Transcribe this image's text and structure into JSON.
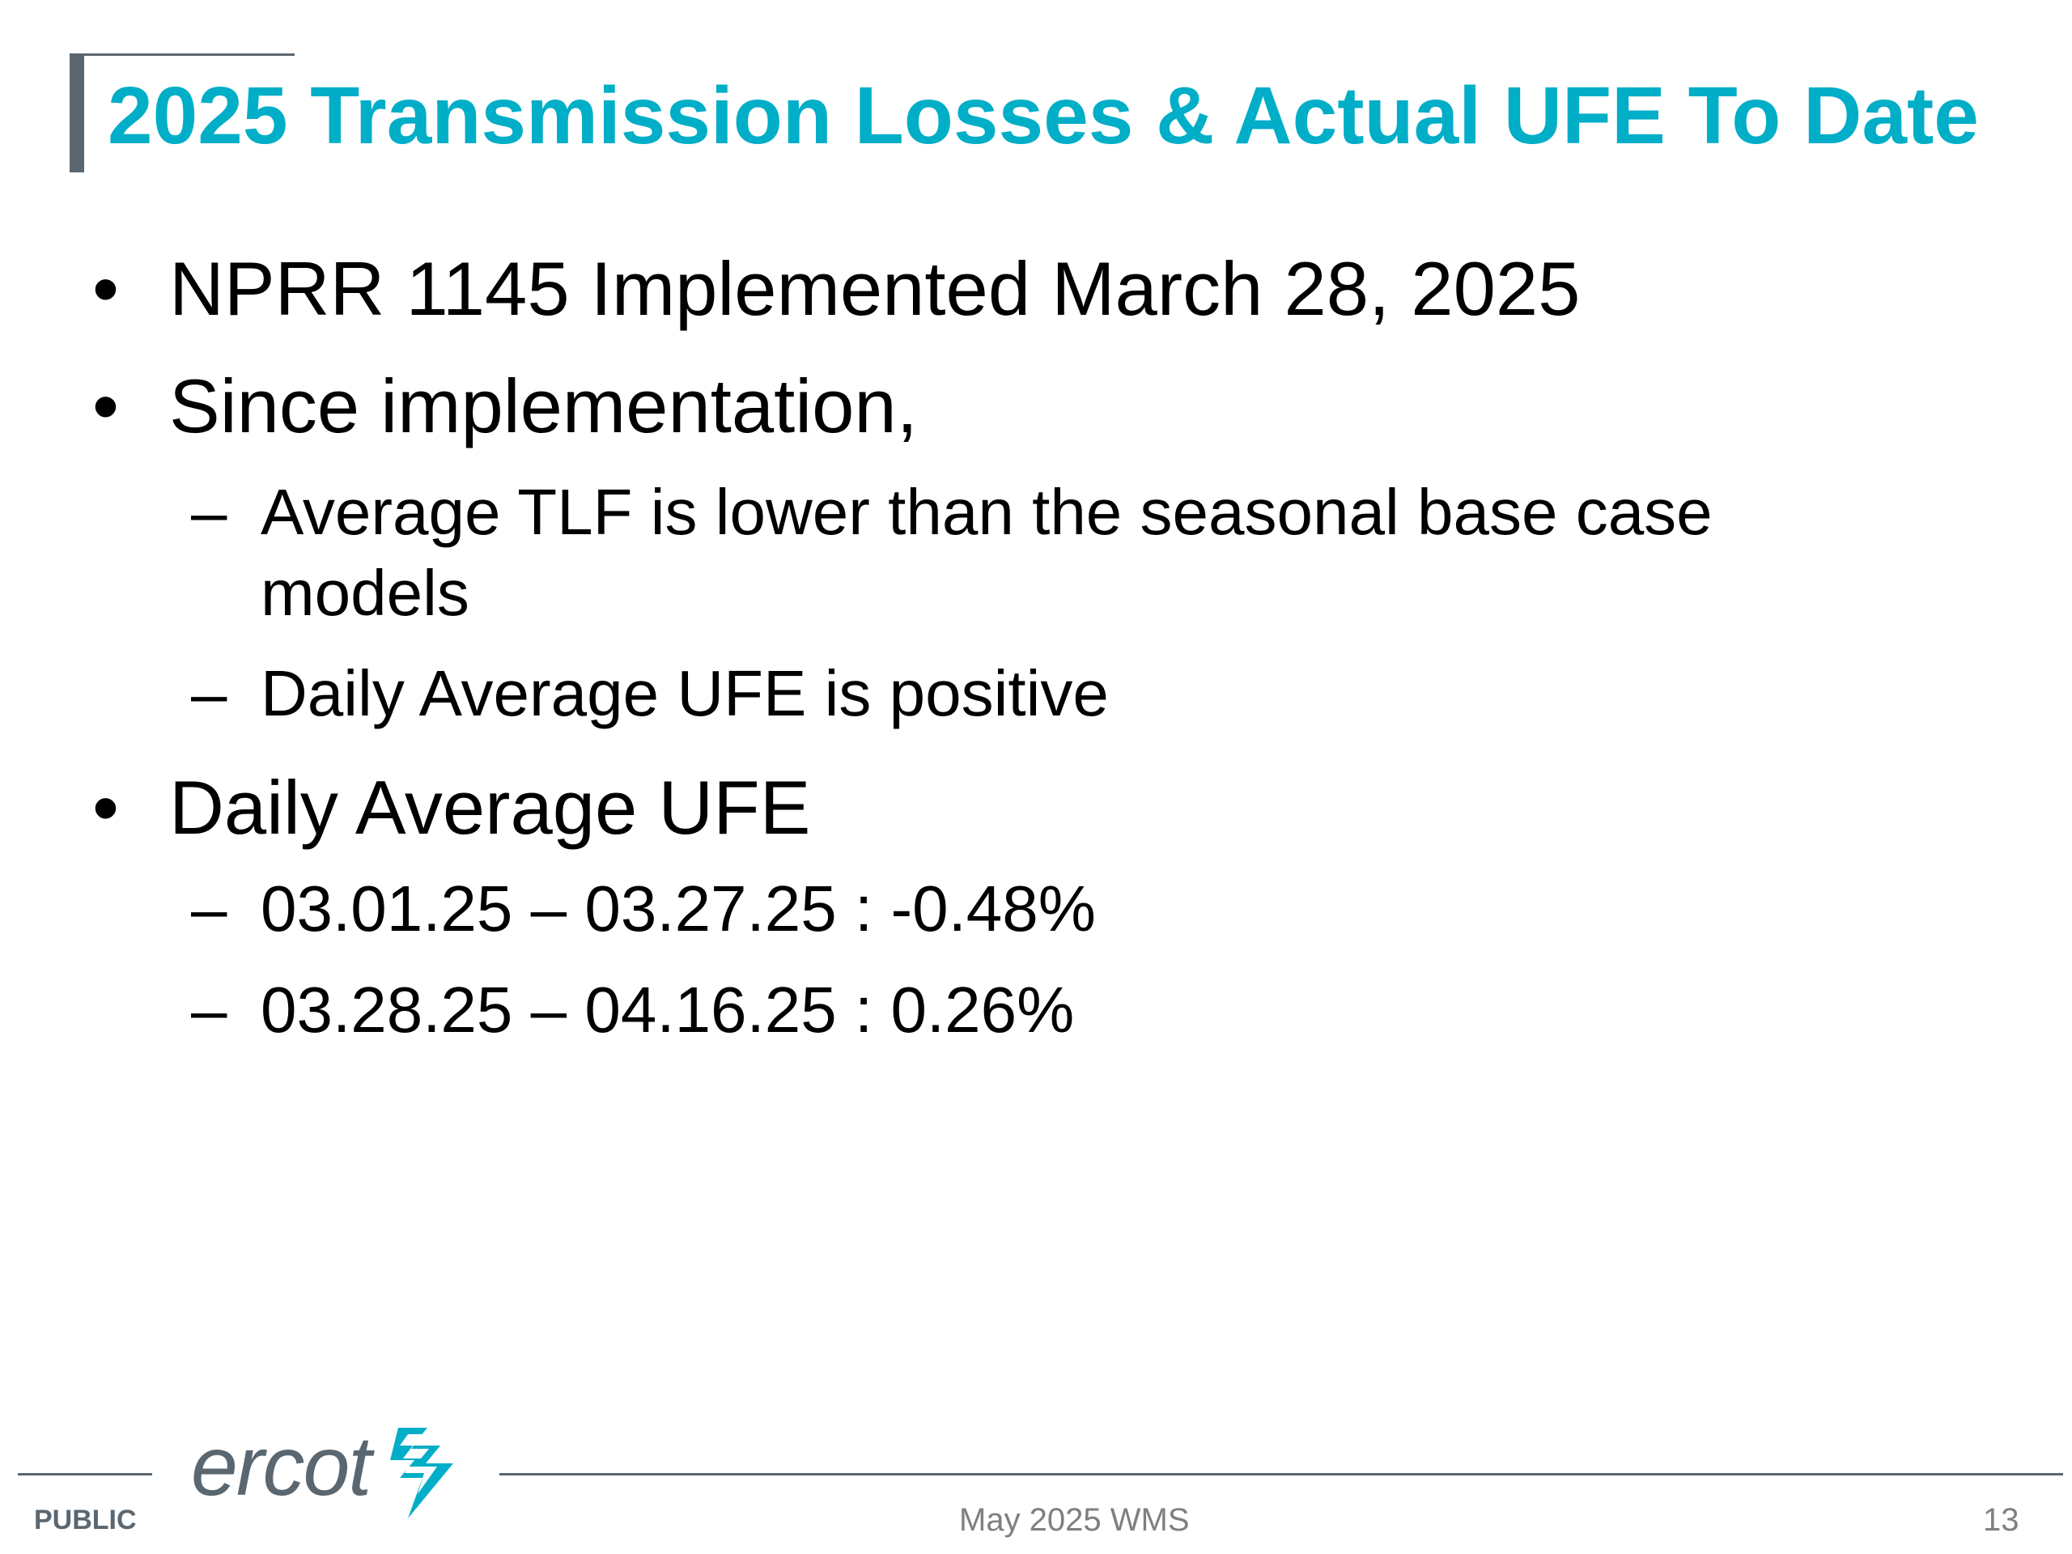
{
  "slide": {
    "title": "2025 Transmission Losses & Actual UFE To Date",
    "bullet_mark": "•",
    "dash_mark": "–",
    "bullets": [
      {
        "text": "NPRR 1145 Implemented March 28, 2025"
      },
      {
        "text": "Since implementation,",
        "subitems": [
          "Average TLF is lower than the seasonal base case models",
          "Daily Average UFE is positive"
        ]
      },
      {
        "text": "Daily Average UFE",
        "subitems": [
          "03.01.25 – 03.27.25 : -0.48%",
          "03.28.25 – 04.16.25 : 0.26%"
        ]
      }
    ]
  },
  "footer": {
    "classification": "PUBLIC",
    "center_text": "May 2025 WMS",
    "page_number": "13",
    "logo_text": "ercot"
  },
  "colors": {
    "title": "#00aec7",
    "accent_gray": "#5b6770",
    "logo_mark": "#00aec7",
    "body_text": "#000000",
    "footer_text": "#7f7f7f"
  },
  "icons": {
    "logo_mark": "ercot-bolt-icon"
  }
}
